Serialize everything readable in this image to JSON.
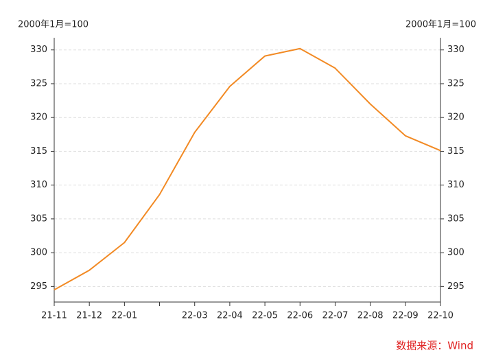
{
  "chart_data": {
    "type": "line",
    "y_label": "2000年1月=100",
    "y2_label": "2000年1月=100",
    "categories": [
      "21-11",
      "21-12",
      "22-01",
      null,
      "22-03",
      "22-04",
      "22-05",
      "22-06",
      "22-07",
      "22-08",
      "22-09",
      "22-10"
    ],
    "values": [
      294.5,
      297.4,
      301.5,
      308.6,
      317.8,
      324.6,
      329.1,
      330.2,
      327.3,
      322.0,
      317.3,
      315.1
    ],
    "color": "#f28a24",
    "ylim": [
      292.7,
      331.8
    ],
    "yticks": [
      295,
      300,
      305,
      310,
      315,
      320,
      325,
      330
    ],
    "y2lim": [
      292.7,
      331.8
    ],
    "y2ticks": [
      295,
      300,
      305,
      310,
      315,
      320,
      325,
      330
    ],
    "grid": true,
    "source": "数据来源：Wind"
  }
}
